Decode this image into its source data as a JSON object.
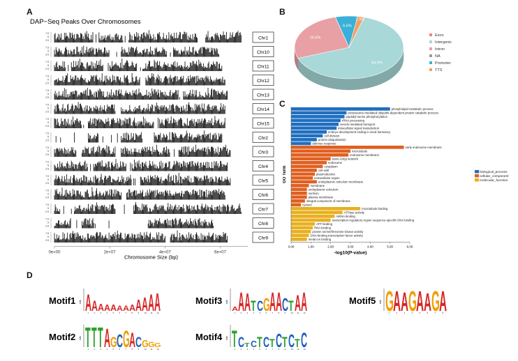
{
  "panel_labels": {
    "a": "A",
    "b": "B",
    "c": "C",
    "d": "D"
  },
  "chart_data": [
    {
      "type": "bar",
      "panel": "A",
      "title": "DAP−Seq Peaks Over Chromosomes",
      "xlabel": "Chromosome Size (bp)",
      "x_ticks": [
        "0e+00",
        "2e+07",
        "4e+07",
        "6e+07"
      ],
      "x_tick_values": [
        0,
        20000000,
        40000000,
        60000000
      ],
      "xlim": [
        0,
        70000000
      ],
      "chromosomes": [
        {
          "name": "Chr1",
          "length": 68000000,
          "gaps": [
            [
              14,
              16
            ],
            [
              25,
              27
            ],
            [
              52,
              55
            ]
          ]
        },
        {
          "name": "Chr10",
          "length": 60000000,
          "gaps": [
            [
              20,
              24
            ],
            [
              41,
              43
            ]
          ]
        },
        {
          "name": "Chr11",
          "length": 61000000,
          "gaps": [
            [
              4,
              6
            ],
            [
              17,
              20
            ],
            [
              30,
              32
            ]
          ]
        },
        {
          "name": "Chr12",
          "length": 62000000,
          "gaps": [
            [
              31,
              33
            ]
          ]
        },
        {
          "name": "Chr13",
          "length": 63000000,
          "gaps": [
            [
              45,
              47
            ]
          ]
        },
        {
          "name": "Chr14",
          "length": 62000000,
          "gaps": [
            [
              22,
              24
            ]
          ]
        },
        {
          "name": "Chr15",
          "length": 62000000,
          "gaps": [
            [
              10,
              12
            ],
            [
              36,
              38
            ]
          ]
        },
        {
          "name": "Chr2",
          "length": 61000000,
          "gaps": [
            [
              0,
              12
            ],
            [
              16,
              24
            ],
            [
              32,
              36
            ]
          ]
        },
        {
          "name": "Chr3",
          "length": 64000000,
          "gaps": [
            [
              8,
              10
            ],
            [
              22,
              24
            ],
            [
              42,
              45
            ]
          ]
        },
        {
          "name": "Chr4",
          "length": 63000000,
          "gaps": [
            [
              12,
              14
            ],
            [
              26,
              28
            ]
          ]
        },
        {
          "name": "Chr5",
          "length": 64000000,
          "gaps": [
            [
              28,
              31
            ]
          ]
        },
        {
          "name": "Chr6",
          "length": 62000000,
          "gaps": [
            [
              24,
              26
            ]
          ]
        },
        {
          "name": "Chr7",
          "length": 68000000,
          "gaps": [
            [
              2,
              7
            ],
            [
              22,
              29
            ]
          ]
        },
        {
          "name": "Chr8",
          "length": 58000000,
          "gaps": [
            [
              6,
              10
            ],
            [
              14,
              34
            ]
          ]
        },
        {
          "name": "Chr9",
          "length": 63000000,
          "gaps": [
            [
              40,
              42
            ]
          ]
        }
      ]
    },
    {
      "type": "pie",
      "panel": "B",
      "slices": [
        {
          "label": "Exon",
          "value": 0.0,
          "text": "0.0%",
          "color": "#f08080"
        },
        {
          "label": "Intergenic",
          "value": 64.9,
          "text": "64.9%",
          "color": "#a8d8d8"
        },
        {
          "label": "Intron",
          "value": 26.6,
          "text": "26.6%",
          "color": "#e8a0a4"
        },
        {
          "label": "NA",
          "value": 0.0,
          "text": "0.0%",
          "color": "#999999"
        },
        {
          "label": "Promoter",
          "value": 6.6,
          "text": "6.6%",
          "color": "#3ab0d8"
        },
        {
          "label": "TTS",
          "value": 1.9,
          "text": "1.9%",
          "color": "#f0a060"
        }
      ],
      "legend_position": "right"
    },
    {
      "type": "bar",
      "orientation": "horizontal",
      "panel": "C",
      "xlabel": "-log10(P-value)",
      "ylabel": "GO Term",
      "x_ticks": [
        "0.00",
        "1.00",
        "2.00",
        "3.00",
        "4.00",
        "5.00",
        "6.00"
      ],
      "xlim": [
        0,
        6
      ],
      "legend": [
        {
          "label": "biological_process",
          "color": "#1f6fc0"
        },
        {
          "label": "cellular_component",
          "color": "#e06020"
        },
        {
          "label": "molecular_function",
          "color": "#e8b020"
        }
      ],
      "terms": [
        {
          "label": "phospholipid metabolic process",
          "value": 5.0,
          "group": "biological_process"
        },
        {
          "label": "proteasome-mediated ubiquitin-dependent protein catabolic process",
          "value": 2.8,
          "group": "biological_process"
        },
        {
          "label": "peptidyl-serine phosphorylation",
          "value": 2.7,
          "group": "biological_process"
        },
        {
          "label": "rRNA processing",
          "value": 2.5,
          "group": "biological_process"
        },
        {
          "label": "vesicle-mediated transport",
          "value": 2.4,
          "group": "biological_process"
        },
        {
          "label": "intracellular signal transduction",
          "value": 2.3,
          "group": "biological_process"
        },
        {
          "label": "embryo development ending in seed dormancy",
          "value": 1.8,
          "group": "biological_process"
        },
        {
          "label": "cell division",
          "value": 1.6,
          "group": "biological_process"
        },
        {
          "label": "protein ubiquitination",
          "value": 1.3,
          "group": "biological_process"
        },
        {
          "label": "defense response",
          "value": 1.0,
          "group": "biological_process"
        },
        {
          "label": "early endosome membrane",
          "value": 5.7,
          "group": "cellular_component"
        },
        {
          "label": "microtubule",
          "value": 3.0,
          "group": "cellular_component"
        },
        {
          "label": "endosome membrane",
          "value": 2.9,
          "group": "cellular_component"
        },
        {
          "label": "trans-Golgi network",
          "value": 2.0,
          "group": "cellular_component"
        },
        {
          "label": "endosome",
          "value": 1.8,
          "group": "cellular_component"
        },
        {
          "label": "cytoplasm",
          "value": 1.6,
          "group": "cellular_component"
        },
        {
          "label": "cell wall",
          "value": 1.3,
          "group": "cellular_component"
        },
        {
          "label": "plasmodesma",
          "value": 1.2,
          "group": "cellular_component"
        },
        {
          "label": "extracellular region",
          "value": 1.1,
          "group": "cellular_component"
        },
        {
          "label": "endoplasmic reticulum membrane",
          "value": 1.3,
          "group": "cellular_component"
        },
        {
          "label": "membrane",
          "value": 0.9,
          "group": "cellular_component"
        },
        {
          "label": "endoplasmic reticulum",
          "value": 0.8,
          "group": "cellular_component"
        },
        {
          "label": "nucleus",
          "value": 0.8,
          "group": "cellular_component"
        },
        {
          "label": "plasma membrane",
          "value": 0.8,
          "group": "cellular_component"
        },
        {
          "label": "integral component of membrane",
          "value": 0.7,
          "group": "cellular_component"
        },
        {
          "label": "cytosol",
          "value": 0.5,
          "group": "cellular_component"
        },
        {
          "label": "microtubule binding",
          "value": 3.5,
          "group": "molecular_function"
        },
        {
          "label": "ATPase activity",
          "value": 2.6,
          "group": "molecular_function"
        },
        {
          "label": "mRNA binding",
          "value": 2.2,
          "group": "molecular_function"
        },
        {
          "label": "transcription regulatory region sequence-specific DNA binding",
          "value": 2.0,
          "group": "molecular_function"
        },
        {
          "label": "ATP binding",
          "value": 1.2,
          "group": "molecular_function"
        },
        {
          "label": "RNA binding",
          "value": 1.1,
          "group": "molecular_function"
        },
        {
          "label": "protein serine/threonine kinase activity",
          "value": 1.0,
          "group": "molecular_function"
        },
        {
          "label": "DNA-binding transcription factor activity",
          "value": 0.9,
          "group": "molecular_function"
        },
        {
          "label": "metal ion binding",
          "value": 0.8,
          "group": "molecular_function"
        }
      ]
    }
  ],
  "motifs": [
    {
      "name": "Motif1",
      "seq": "AAAAAAAAAAAA",
      "colors": "AAAAAAAAAAAA",
      "heights": [
        1.6,
        1.0,
        0.7,
        0.6,
        0.6,
        0.5,
        0.5,
        0.6,
        1.1,
        1.3,
        1.6,
        1.7
      ]
    },
    {
      "name": "Motif3",
      "seq": "AAATCGAACTAA",
      "heights": [
        0.4,
        1.8,
        1.7,
        1.0,
        1.0,
        1.2,
        1.8,
        1.8,
        1.2,
        1.0,
        1.5,
        1.8
      ]
    },
    {
      "name": "Motif5",
      "seq": "GAAGAAGA",
      "heights": [
        1.9,
        1.9,
        1.8,
        1.9,
        1.9,
        1.7,
        1.9,
        1.9
      ]
    },
    {
      "name": "Motif2",
      "seq": "TTTAGCGACGGG",
      "heights": [
        1.9,
        1.9,
        1.9,
        1.8,
        1.0,
        1.2,
        1.6,
        1.4,
        1.0,
        0.7,
        0.5,
        0.4
      ]
    },
    {
      "name": "Motif4",
      "seq": "TCTCTCTCTCTC",
      "heights": [
        1.6,
        1.0,
        0.4,
        0.6,
        1.0,
        1.0,
        0.8,
        1.3,
        1.0,
        1.2,
        0.8,
        1.4
      ]
    }
  ],
  "motif_ylabel": "bits"
}
